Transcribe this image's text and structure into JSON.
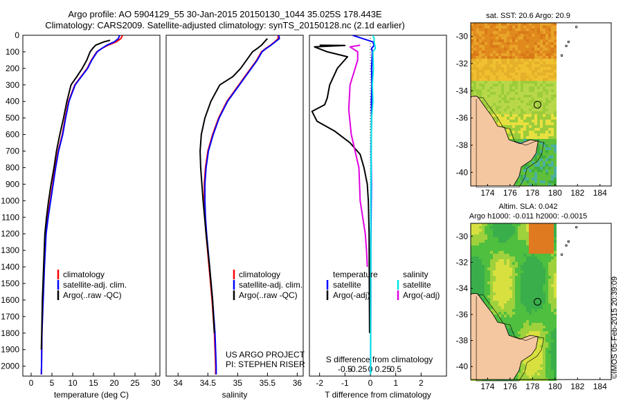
{
  "header": {
    "title_line1": "Argo profile: AO 5904129_55 30-Jan-2015 20150130_1044 35.025S 178.443E",
    "title_line2": "Climatology: CARS2009. Satellite-adjusted climatology: synTS_20150128.nc (2.1d earlier)"
  },
  "colors": {
    "clim": "#ff0000",
    "sat": "#0000ff",
    "argo": "#000000",
    "sat_s": "#00e5e5",
    "argo_s": "#e000e0",
    "land": "#f5c7a0"
  },
  "depth_ticks": [
    0,
    100,
    200,
    300,
    400,
    500,
    600,
    700,
    800,
    900,
    1000,
    1100,
    1200,
    1300,
    1400,
    1500,
    1600,
    1700,
    1800,
    1900,
    2000
  ],
  "chart_data": [
    {
      "type": "line",
      "id": "temperature",
      "xlabel": "temperature (deg C)",
      "xlim": [
        -2,
        31
      ],
      "ylim": [
        0,
        2060
      ],
      "xticks": [
        0,
        5,
        10,
        15,
        20,
        25,
        30
      ],
      "series": [
        {
          "name": "climatology",
          "color": "#ff0000",
          "x": [
            22.0,
            21.6,
            20.5,
            18.5,
            17.0,
            15.8,
            14.5,
            13.5,
            12.0,
            10.5,
            9.0,
            8.2,
            7.5,
            6.5,
            5.8,
            5.2,
            4.6,
            4.0,
            3.5,
            3.1,
            2.8,
            2.6,
            2.5,
            2.45
          ],
          "y": [
            0,
            20,
            40,
            60,
            80,
            100,
            150,
            200,
            250,
            300,
            400,
            500,
            600,
            700,
            800,
            900,
            1000,
            1100,
            1200,
            1400,
            1600,
            1800,
            2000,
            2050
          ]
        },
        {
          "name": "satellite-adj. clim.",
          "color": "#0000ff",
          "x": [
            21.3,
            21.0,
            20.0,
            18.2,
            17.0,
            15.9,
            14.6,
            13.6,
            12.1,
            10.6,
            9.1,
            8.3,
            7.6,
            6.6,
            5.9,
            5.3,
            4.7,
            4.1,
            3.6,
            3.2,
            2.9,
            2.6,
            2.5,
            2.45
          ],
          "y": [
            0,
            20,
            40,
            60,
            80,
            100,
            150,
            200,
            250,
            300,
            400,
            500,
            600,
            700,
            800,
            900,
            1000,
            1100,
            1200,
            1400,
            1600,
            1800,
            2000,
            2050
          ]
        },
        {
          "name": "Argo(..raw -QC)",
          "color": "#000000",
          "x": [
            19.0,
            17.5,
            15.5,
            14.8,
            14.2,
            13.4,
            12.3,
            11.0,
            9.6,
            8.6,
            7.8,
            6.9,
            6.1,
            5.5,
            4.8,
            4.2,
            3.7,
            3.3,
            3.0,
            2.7,
            2.55,
            2.45
          ],
          "y": [
            30,
            40,
            60,
            80,
            100,
            150,
            200,
            250,
            300,
            400,
            500,
            600,
            700,
            800,
            900,
            1000,
            1100,
            1200,
            1400,
            1600,
            1800,
            1900
          ]
        }
      ],
      "legend": [
        "climatology",
        "satellite-adj. clim.",
        "Argo(..raw -QC)"
      ]
    },
    {
      "type": "line",
      "id": "salinity",
      "xlabel": "salinity",
      "xlim": [
        33.8,
        36.1
      ],
      "ylim": [
        0,
        2060
      ],
      "xticks": [
        34,
        34.5,
        35,
        35.5,
        36
      ],
      "xtick_labels": [
        "34",
        "34.5",
        "35",
        "35.5",
        "36"
      ],
      "series": [
        {
          "name": "climatology",
          "color": "#ff0000",
          "x": [
            35.68,
            35.68,
            35.62,
            35.55,
            35.47,
            35.4,
            35.32,
            35.22,
            35.12,
            35.02,
            34.82,
            34.68,
            34.58,
            34.5,
            34.46,
            34.44,
            34.44,
            34.45,
            34.47,
            34.52,
            34.57,
            34.61,
            34.63,
            34.63
          ],
          "y": [
            0,
            20,
            40,
            60,
            80,
            100,
            150,
            200,
            250,
            300,
            400,
            500,
            600,
            700,
            800,
            900,
            1000,
            1100,
            1200,
            1400,
            1600,
            1800,
            2000,
            2050
          ]
        },
        {
          "name": "satellite-adj. clim.",
          "color": "#0000ff",
          "x": [
            35.69,
            35.7,
            35.63,
            35.56,
            35.48,
            35.41,
            35.33,
            35.23,
            35.13,
            35.03,
            34.83,
            34.69,
            34.59,
            34.51,
            34.47,
            34.45,
            34.45,
            34.46,
            34.48,
            34.53,
            34.58,
            34.62,
            34.64,
            34.64
          ],
          "y": [
            0,
            20,
            40,
            60,
            80,
            100,
            150,
            200,
            250,
            300,
            400,
            500,
            600,
            700,
            800,
            900,
            1000,
            1100,
            1200,
            1400,
            1600,
            1800,
            2000,
            2050
          ]
        },
        {
          "name": "Argo(..raw -QC)",
          "color": "#000000",
          "x": [
            35.5,
            35.45,
            35.4,
            35.33,
            35.25,
            35.15,
            35.05,
            34.92,
            34.7,
            34.55,
            34.45,
            34.39,
            34.37,
            34.38,
            34.42,
            34.47,
            34.53,
            34.58,
            34.61
          ],
          "y": [
            20,
            40,
            60,
            80,
            100,
            150,
            200,
            250,
            300,
            400,
            500,
            600,
            700,
            800,
            1000,
            1200,
            1400,
            1600,
            1800
          ]
        }
      ],
      "legend": [
        "climatology",
        "satellite-adj. clim.",
        "Argo(..raw -QC)"
      ],
      "annotations": [
        "US ARGO PROJECT",
        "PI: STEPHEN RISER"
      ]
    },
    {
      "type": "line",
      "id": "difference",
      "xlabel": "T difference from climatology",
      "xlabel_top": "S difference from climatology",
      "xlim": [
        -2.4,
        3.0
      ],
      "ylim": [
        0,
        2060
      ],
      "xticks": [
        -2,
        -1,
        0,
        1,
        2
      ],
      "top_xticks_value": [
        -1.0,
        -0.5,
        0,
        0.5,
        1.0
      ],
      "top_xtick_labels": [
        "-0.5",
        "-0.25",
        "0",
        "0.25",
        "0.5"
      ],
      "series": [
        {
          "name": "temperature satellite",
          "color": "#0000ff",
          "x": [
            -0.7,
            -0.3,
            0.1,
            0.15,
            0.05,
            0.08,
            0.05,
            0.06,
            0.04,
            0.05,
            0.03,
            0.04,
            0.03,
            0.02,
            0.02,
            0.01,
            0.01
          ],
          "y": [
            0,
            20,
            40,
            60,
            80,
            100,
            200,
            300,
            400,
            500,
            700,
            900,
            1100,
            1300,
            1600,
            1900,
            2050
          ]
        },
        {
          "name": "temperature Argo(-adj)",
          "color": "#000000",
          "x": [
            -2.0,
            -1.0,
            -2.2,
            -1.7,
            -0.9,
            -1.3,
            -1.6,
            -1.7,
            -1.8,
            -2.3,
            -2.1,
            -1.4,
            -0.8,
            -0.4,
            -0.25,
            -0.12,
            -0.08,
            -0.05,
            -0.04,
            -0.03
          ],
          "y": [
            60,
            62,
            70,
            100,
            130,
            200,
            300,
            380,
            420,
            460,
            520,
            580,
            650,
            720,
            800,
            900,
            1000,
            1200,
            1500,
            1800
          ]
        },
        {
          "name": "salinity satellite",
          "color": "#00e5e5",
          "x": [
            0.1,
            0.15,
            0.15,
            0.2,
            0.1,
            0.12,
            0.08,
            0.1,
            0.05,
            0.04,
            0.03,
            0.02,
            0.02,
            0.01,
            0.01
          ],
          "y": [
            0,
            20,
            40,
            80,
            100,
            200,
            300,
            400,
            500,
            600,
            800,
            1000,
            1300,
            1700,
            2050
          ]
        },
        {
          "name": "salinity Argo(-adj)",
          "color": "#e000e0",
          "x": [
            -0.4,
            -0.8,
            -0.5,
            -0.5,
            -0.8,
            -0.85,
            -0.75,
            -0.45,
            -0.4,
            -0.3,
            -0.2,
            -0.15,
            -0.12
          ],
          "y": [
            60,
            70,
            100,
            150,
            300,
            450,
            600,
            800,
            1000,
            1100,
            1200,
            1300,
            1400
          ]
        }
      ],
      "legend_left": {
        "heading": "temperature",
        "items": [
          "satellite",
          "Argo(-adj)"
        ]
      },
      "legend_right": {
        "heading": "salinity",
        "items": [
          "satellite",
          "Argo(-adj)"
        ]
      }
    },
    {
      "type": "heatmap",
      "id": "sst_map",
      "title": "sat. SST: 20.6  Argo: 20.9",
      "xlim": [
        172.5,
        185.0
      ],
      "ylim": [
        -41,
        -29
      ],
      "xticks": [
        174,
        176,
        178,
        180,
        182,
        184
      ],
      "yticks": [
        -30,
        -32,
        -34,
        -36,
        -38,
        -40
      ]
    },
    {
      "type": "heatmap",
      "id": "sla_map",
      "title": "Altim. SLA: 0.042",
      "subtitle": "Argo h1000: -0.011 h2000: -0.0015",
      "xlim": [
        172.5,
        185.0
      ],
      "ylim": [
        -41,
        -29
      ],
      "xticks": [
        174,
        176,
        178,
        180,
        182,
        184
      ],
      "yticks": [
        -30,
        -32,
        -34,
        -36,
        -38,
        -40
      ]
    }
  ],
  "footer": {
    "stamp": "©IMOS 05-Feb-2015 20:39:09"
  }
}
